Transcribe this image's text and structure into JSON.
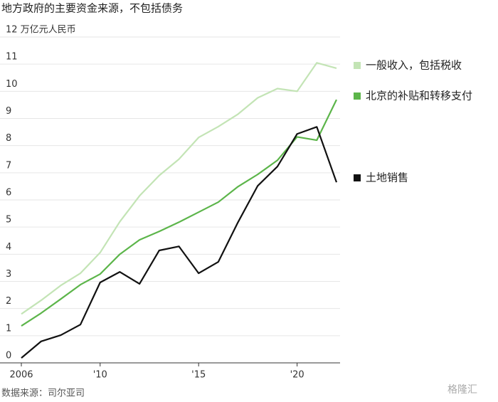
{
  "chart_data": {
    "type": "line",
    "title": "地方政府的主要资金来源，不包括债务",
    "source": "数据来源：司尔亚司",
    "watermark": "格隆汇",
    "x": [
      2006,
      2007,
      2008,
      2009,
      2010,
      2011,
      2012,
      2013,
      2014,
      2015,
      2016,
      2017,
      2018,
      2019,
      2020,
      2021,
      2022
    ],
    "xlim": [
      2006,
      2022
    ],
    "xticks": [
      2006,
      {
        "value": 2010,
        "label": "'10"
      },
      {
        "value": 2015,
        "label": "'15"
      },
      {
        "value": 2020,
        "label": "'20"
      }
    ],
    "ylim": [
      0,
      12
    ],
    "yticks": [
      0,
      1,
      2,
      3,
      4,
      5,
      6,
      7,
      8,
      9,
      10,
      11,
      {
        "value": 12,
        "label": "12 万亿元人民币"
      }
    ],
    "grid": true,
    "series": [
      {
        "name": "一般收入，包括税收",
        "color": "#c3e4b5",
        "values": [
          1.8,
          2.3,
          2.85,
          3.3,
          4.06,
          5.2,
          6.15,
          6.9,
          7.5,
          8.3,
          8.7,
          9.16,
          9.76,
          10.1,
          10.0,
          11.05,
          10.85
        ]
      },
      {
        "name": "北京的补贴和转移支付",
        "color": "#5cb54a",
        "values": [
          1.36,
          1.83,
          2.35,
          2.88,
          3.27,
          4.0,
          4.53,
          4.84,
          5.18,
          5.55,
          5.92,
          6.49,
          6.94,
          7.46,
          8.32,
          8.2,
          9.69
        ]
      },
      {
        "name": "土地销售",
        "color": "#111111",
        "values": [
          0.18,
          0.79,
          1.02,
          1.41,
          2.96,
          3.35,
          2.91,
          4.14,
          4.29,
          3.3,
          3.72,
          5.18,
          6.52,
          7.23,
          8.43,
          8.69,
          6.65
        ]
      }
    ]
  }
}
